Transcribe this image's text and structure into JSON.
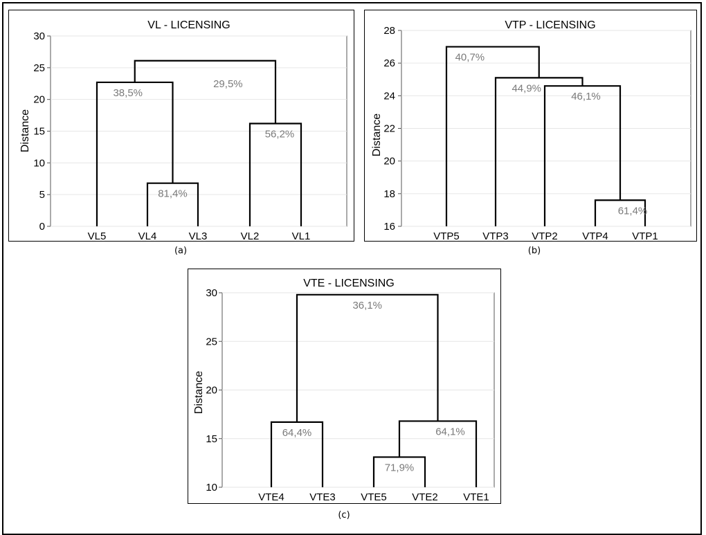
{
  "chart_data": [
    {
      "type": "dendrogram",
      "title": "VL - LICENSING",
      "ylabel": "Distance",
      "ylim": [
        0,
        30
      ],
      "yticks": [
        0,
        5,
        10,
        15,
        20,
        25,
        30
      ],
      "leaves": [
        "VL5",
        "VL4",
        "VL3",
        "VL2",
        "VL1"
      ],
      "merges": [
        {
          "left": "VL4",
          "right": "VL3",
          "height": 6.8,
          "label": "81,4%"
        },
        {
          "left": "VL2",
          "right": "VL1",
          "height": 16.2,
          "label": "56,2%"
        },
        {
          "left": "VL5",
          "right": "VL4+VL3",
          "height": 22.7,
          "label": "38,5%"
        },
        {
          "left": "VL5+VL4+VL3",
          "right": "VL2+VL1",
          "height": 26.1,
          "label": "29,5%"
        }
      ],
      "caption": "(a)"
    },
    {
      "type": "dendrogram",
      "title": "VTP  - LICENSING",
      "ylabel": "Distance",
      "ylim": [
        16,
        28
      ],
      "yticks": [
        16,
        18,
        20,
        22,
        24,
        26,
        28
      ],
      "leaves": [
        "VTP5",
        "VTP3",
        "VTP2",
        "VTP4",
        "VTP1"
      ],
      "merges": [
        {
          "left": "VTP4",
          "right": "VTP1",
          "height": 17.6,
          "label": "61,4%"
        },
        {
          "left": "VTP2",
          "right": "VTP4+VTP1",
          "height": 24.6,
          "label": "46,1%"
        },
        {
          "left": "VTP3",
          "right": "VTP2+VTP4+VTP1",
          "height": 25.1,
          "label": "44,9%"
        },
        {
          "left": "VTP5",
          "right": "VTP3+VTP2+VTP4+VTP1",
          "height": 27.0,
          "label": "40,7%"
        }
      ],
      "caption": "(b)"
    },
    {
      "type": "dendrogram",
      "title": "VTE - LICENSING",
      "ylabel": "Distance",
      "ylim": [
        10,
        30
      ],
      "yticks": [
        10,
        15,
        20,
        25,
        30
      ],
      "leaves": [
        "VTE4",
        "VTE3",
        "VTE5",
        "VTE2",
        "VTE1"
      ],
      "merges": [
        {
          "left": "VTE5",
          "right": "VTE2",
          "height": 13.1,
          "label": "71,9%"
        },
        {
          "left": "VTE4",
          "right": "VTE3",
          "height": 16.7,
          "label": "64,4%"
        },
        {
          "left": "VTE5+VTE2",
          "right": "VTE1",
          "height": 16.8,
          "label": "64,1%"
        },
        {
          "left": "VTE4+VTE3",
          "right": "VTE5+VTE2+VTE1",
          "height": 29.8,
          "label": "36,1%"
        }
      ],
      "caption": "(c)"
    }
  ]
}
